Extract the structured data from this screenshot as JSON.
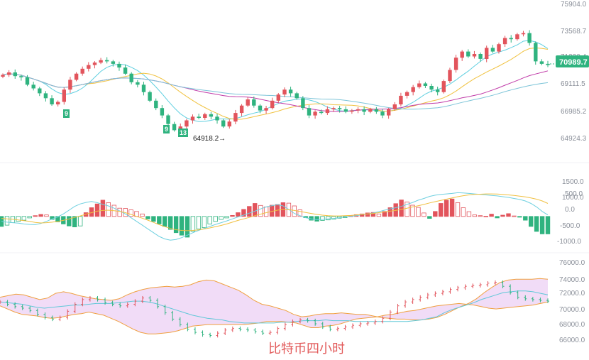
{
  "colors": {
    "up": "#e2545c",
    "down": "#2fb37f",
    "ma_fast": "#5fcfe0",
    "ma_mid": "#f0c240",
    "ma_slow": "#c03aa8",
    "ma_long": "#7cc4d8",
    "macd_dif": "#6fd0e0",
    "macd_dea": "#f0c040",
    "boll_upper": "#f0a040",
    "boll_mid": "#60c8d8",
    "boll_fill": "#efd6f6",
    "price_tag": "#2fb37f",
    "axis_text": "#8a8f99",
    "watermark": "#e25b5b"
  },
  "price_panel": {
    "y_ticks": [
      "75904.0",
      "73568.7",
      "71230.4",
      "69111.5",
      "66985.2",
      "64924.3"
    ],
    "current_price": "70989.7",
    "low_annotation": "64918.2",
    "seq_markers": [
      {
        "text": "9",
        "at": "low-1"
      },
      {
        "text": "9",
        "at": "low-2"
      },
      {
        "text": "13",
        "at": "low-2b"
      }
    ]
  },
  "macd_panel": {
    "y_ticks": [
      "1500.0",
      "1000.0",
      "500.0",
      "0.0",
      "-500.0",
      "-1000.0"
    ]
  },
  "boll_panel": {
    "y_ticks": [
      "76000.0",
      "74000.0",
      "72000.0",
      "70000.0",
      "68000.0",
      "66000.0"
    ]
  },
  "watermark": "比特币四小时",
  "chart_data": [
    {
      "type": "candlestick",
      "title": "",
      "ylim": [
        64924.3,
        75904.0
      ],
      "close_series_approx": [
        70100,
        70300,
        70000,
        69900,
        69300,
        69000,
        68600,
        68200,
        67700,
        67900,
        68900,
        69700,
        70200,
        70600,
        70900,
        71100,
        71300,
        71200,
        71000,
        70700,
        70200,
        69500,
        69300,
        68700,
        68000,
        67400,
        66800,
        66100,
        65600,
        65900,
        66400,
        66700,
        66600,
        66900,
        66700,
        66400,
        65900,
        66300,
        67000,
        67600,
        68100,
        67600,
        67200,
        67400,
        68000,
        68500,
        68900,
        68600,
        68200,
        67400,
        66800,
        67100,
        67000,
        67300,
        67400,
        67300,
        67100,
        67200,
        67300,
        67100,
        67300,
        67100,
        66800,
        67300,
        67700,
        68400,
        68700,
        69100,
        69400,
        69200,
        68900,
        68700,
        69600,
        70500,
        71500,
        72000,
        71600,
        71800,
        71400,
        72300,
        72000,
        72600,
        73100,
        73000,
        73400,
        73500,
        72700,
        71200,
        71000,
        70900
      ],
      "low_point": 64918.2,
      "last_price": 70989.7
    },
    {
      "type": "bar",
      "title": "",
      "ylim": [
        -1000,
        1500
      ],
      "series": [
        {
          "values": [
            -400,
            -350,
            -250,
            -200,
            -150,
            -60,
            30,
            80,
            60,
            -120,
            -220,
            -300,
            -380,
            -420,
            -380,
            150,
            350,
            500,
            650,
            550,
            450,
            330,
            320,
            260,
            200,
            100,
            -100,
            -200,
            -300,
            -400,
            -520,
            -650,
            -750,
            -830,
            -600,
            -500,
            -450,
            -300,
            -200,
            -120,
            -60,
            40,
            150,
            280,
            400,
            520,
            440,
            380,
            450,
            480,
            550,
            530,
            420,
            260,
            -50,
            -150,
            -190,
            -160,
            -140,
            -110,
            -70,
            -50,
            20,
            70,
            100,
            140,
            160,
            100,
            200,
            350,
            510,
            660,
            580,
            450,
            360,
            140,
            -80,
            200,
            520,
            650,
            700,
            550,
            350,
            190,
            60,
            30,
            10,
            90,
            -60,
            50,
            110,
            20,
            -30,
            -150,
            -400,
            -600,
            -700,
            -700
          ]
        },
        {
          "values": [
            -200,
            -230,
            -250,
            -270,
            -300,
            -320,
            -330,
            -280,
            -200,
            -100,
            -20,
            100,
            250,
            400,
            500,
            560,
            600,
            550,
            480,
            420,
            330,
            220,
            100,
            -50,
            -200,
            -350,
            -500,
            -650,
            -800,
            -900,
            -950,
            -920,
            -850,
            -750,
            -650,
            -560,
            -480,
            -400,
            -320,
            -250,
            -180,
            -100,
            -20,
            50,
            130,
            210,
            300,
            380,
            430,
            470,
            420,
            280,
            120,
            30,
            -50,
            -100,
            -130,
            -120,
            -100,
            -80,
            -50,
            -20,
            0,
            30,
            70,
            100,
            140,
            190,
            250,
            300,
            350,
            400,
            480,
            560,
            650,
            720,
            800,
            850,
            880,
            900,
            920,
            950,
            940,
            920,
            900,
            880,
            860,
            840,
            820,
            790,
            760,
            720,
            680,
            620,
            520,
            380,
            200,
            60
          ]
        },
        {
          "values": [
            -80,
            -100,
            -110,
            -140,
            -170,
            -200,
            -240,
            -260,
            -250,
            -230,
            -200,
            -160,
            -100,
            -40,
            20,
            90,
            150,
            210,
            240,
            250,
            230,
            200,
            150,
            80,
            0,
            -70,
            -150,
            -240,
            -330,
            -410,
            -480,
            -530,
            -560,
            -570,
            -560,
            -540,
            -500,
            -460,
            -410,
            -360,
            -300,
            -230,
            -160,
            -100,
            -40,
            30,
            90,
            150,
            200,
            250,
            280,
            270,
            240,
            200,
            160,
            120,
            80,
            50,
            30,
            20,
            20,
            30,
            40,
            60,
            80,
            100,
            120,
            150,
            180,
            210,
            240,
            280,
            330,
            380,
            430,
            480,
            540,
            590,
            640,
            690,
            740,
            790,
            830,
            860,
            880,
            890,
            900,
            900,
            895,
            880,
            860,
            840,
            810,
            780,
            740,
            690,
            620,
            520
          ]
        }
      ]
    },
    {
      "type": "line",
      "title": "",
      "ylim": [
        66000,
        76000
      ],
      "series": [
        {
          "values": [
            71400,
            71600,
            71800,
            71700,
            71400,
            71100,
            71300,
            71900,
            72100,
            71900,
            71600,
            71400,
            71200,
            71100,
            71000,
            71200,
            71700,
            72100,
            72400,
            72600,
            72700,
            72800,
            72700,
            72800,
            73000,
            73400,
            73600,
            73500,
            73100,
            72700,
            72300,
            71700,
            71000,
            70500,
            70300,
            70000,
            69700,
            69200,
            68900,
            69000,
            69200,
            69300,
            69300,
            69400,
            69300,
            69200,
            69200,
            69000,
            68800,
            68700,
            68600,
            68600,
            68500,
            68500,
            68600,
            68800,
            69200,
            69700,
            70200,
            70600,
            71200,
            72000,
            72700,
            73300,
            73600,
            73700,
            73700,
            73700,
            73800,
            73700
          ]
        },
        {
          "values": [
            70800,
            70700,
            70600,
            70500,
            70300,
            70100,
            70000,
            70100,
            70200,
            70300,
            70400,
            70400,
            70500,
            70600,
            70600,
            70600,
            70700,
            70800,
            70900,
            70900,
            70800,
            70600,
            70300,
            70000,
            69700,
            69400,
            69100,
            68900,
            68700,
            68600,
            68500,
            68300,
            68200,
            68100,
            68100,
            68100,
            68100,
            68100,
            68200,
            68200,
            68300,
            68400,
            68400,
            68400,
            68500,
            68400,
            68400,
            68400,
            68300,
            68300,
            68300,
            68300,
            68300,
            68300,
            68300,
            68300,
            68400,
            68500,
            68700,
            68900,
            69400,
            69800,
            70100,
            70400,
            70700,
            71100,
            71400,
            71700,
            72000,
            72100,
            72200,
            72200,
            72100,
            71900,
            71700
          ]
        },
        {
          "values": [
            70300,
            69900,
            69500,
            69200,
            69100,
            69000,
            68800,
            68700,
            68800,
            69000,
            69200,
            69300,
            69500,
            69300,
            69100,
            68700,
            68300,
            67800,
            67300,
            66900,
            66700,
            66700,
            66800,
            66900,
            67100,
            67400,
            67700,
            67800,
            67900,
            67900,
            67900,
            67900,
            67900,
            67900,
            68000,
            68100,
            68300,
            68300,
            68300,
            68200,
            68100,
            67800,
            67500,
            67500,
            67700,
            67800,
            68000,
            68300,
            68600,
            68700,
            68800,
            68900,
            69100,
            69200,
            69400,
            69600,
            69700,
            69900,
            70100,
            70300,
            70400,
            70500,
            70600,
            70500,
            70400,
            70200,
            70000,
            69900,
            70000,
            70100,
            70200,
            70300,
            70400,
            70600,
            70800
          ]
        },
        {
          "values": [
            70800,
            70500,
            70200,
            70000,
            69700,
            69200,
            68800,
            68600,
            68800,
            69600,
            70500,
            71100,
            71300,
            71100,
            70700,
            70500,
            70300,
            70500,
            70900,
            71300,
            71000,
            70200,
            69400,
            68600,
            67900,
            67300,
            66900,
            66600,
            66500,
            66800,
            67200,
            67400,
            67300,
            67200,
            67000,
            66800,
            66900,
            67400,
            67900,
            68300,
            68500,
            68400,
            68000,
            67600,
            67300,
            67400,
            67600,
            67800,
            68000,
            68100,
            68300,
            68700,
            69500,
            70300,
            70800,
            71100,
            71400,
            71700,
            71900,
            72100,
            72400,
            72600,
            72800,
            72900,
            73000,
            73200,
            73300,
            72800,
            72000,
            71400,
            71200,
            71100,
            71000,
            70900
          ]
        }
      ]
    }
  ]
}
